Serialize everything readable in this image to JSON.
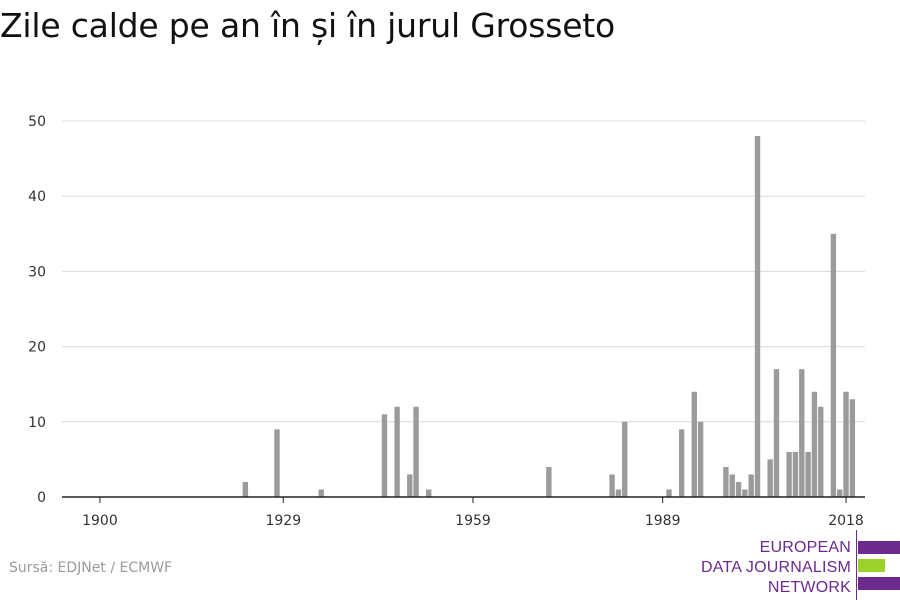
{
  "title": "Zile calde pe an în și în jurul Grosseto",
  "source": "Sursă: EDJNet / ECMWF",
  "logo": {
    "lines": [
      "EUROPEAN",
      "DATA JOURNALISM",
      "NETWORK"
    ],
    "colors": {
      "purple": "#6b2a8c",
      "green": "#9bd22a"
    }
  },
  "colors": {
    "bar": "#9b9b9b",
    "grid": "#d9d9d9",
    "axis": "#222222"
  },
  "chart_data": {
    "type": "bar",
    "title": "Zile calde pe an în și în jurul Grosseto",
    "xlabel": "",
    "ylabel": "",
    "xlim": [
      1894,
      2021
    ],
    "ylim": [
      0,
      50
    ],
    "x_ticks": [
      1900,
      1929,
      1959,
      1989,
      2018
    ],
    "y_ticks": [
      0,
      10,
      20,
      30,
      40,
      50
    ],
    "grid": true,
    "legend": "none",
    "points": [
      {
        "x": 1923,
        "y": 2
      },
      {
        "x": 1928,
        "y": 9
      },
      {
        "x": 1930,
        "y": 0
      },
      {
        "x": 1935,
        "y": 1
      },
      {
        "x": 1945,
        "y": 11
      },
      {
        "x": 1947,
        "y": 12
      },
      {
        "x": 1949,
        "y": 3
      },
      {
        "x": 1950,
        "y": 12
      },
      {
        "x": 1952,
        "y": 1
      },
      {
        "x": 1971,
        "y": 4
      },
      {
        "x": 1981,
        "y": 3
      },
      {
        "x": 1982,
        "y": 1
      },
      {
        "x": 1983,
        "y": 10
      },
      {
        "x": 1990,
        "y": 1
      },
      {
        "x": 1992,
        "y": 9
      },
      {
        "x": 1994,
        "y": 14
      },
      {
        "x": 1995,
        "y": 10
      },
      {
        "x": 1999,
        "y": 4
      },
      {
        "x": 2000,
        "y": 3
      },
      {
        "x": 2001,
        "y": 2
      },
      {
        "x": 2002,
        "y": 1
      },
      {
        "x": 2003,
        "y": 3
      },
      {
        "x": 2004,
        "y": 48
      },
      {
        "x": 2006,
        "y": 5
      },
      {
        "x": 2007,
        "y": 17
      },
      {
        "x": 2009,
        "y": 6
      },
      {
        "x": 2010,
        "y": 6
      },
      {
        "x": 2011,
        "y": 17
      },
      {
        "x": 2012,
        "y": 6
      },
      {
        "x": 2013,
        "y": 14
      },
      {
        "x": 2014,
        "y": 12
      },
      {
        "x": 2016,
        "y": 35
      },
      {
        "x": 2017,
        "y": 1
      },
      {
        "x": 2018,
        "y": 14
      },
      {
        "x": 2019,
        "y": 13
      }
    ]
  }
}
